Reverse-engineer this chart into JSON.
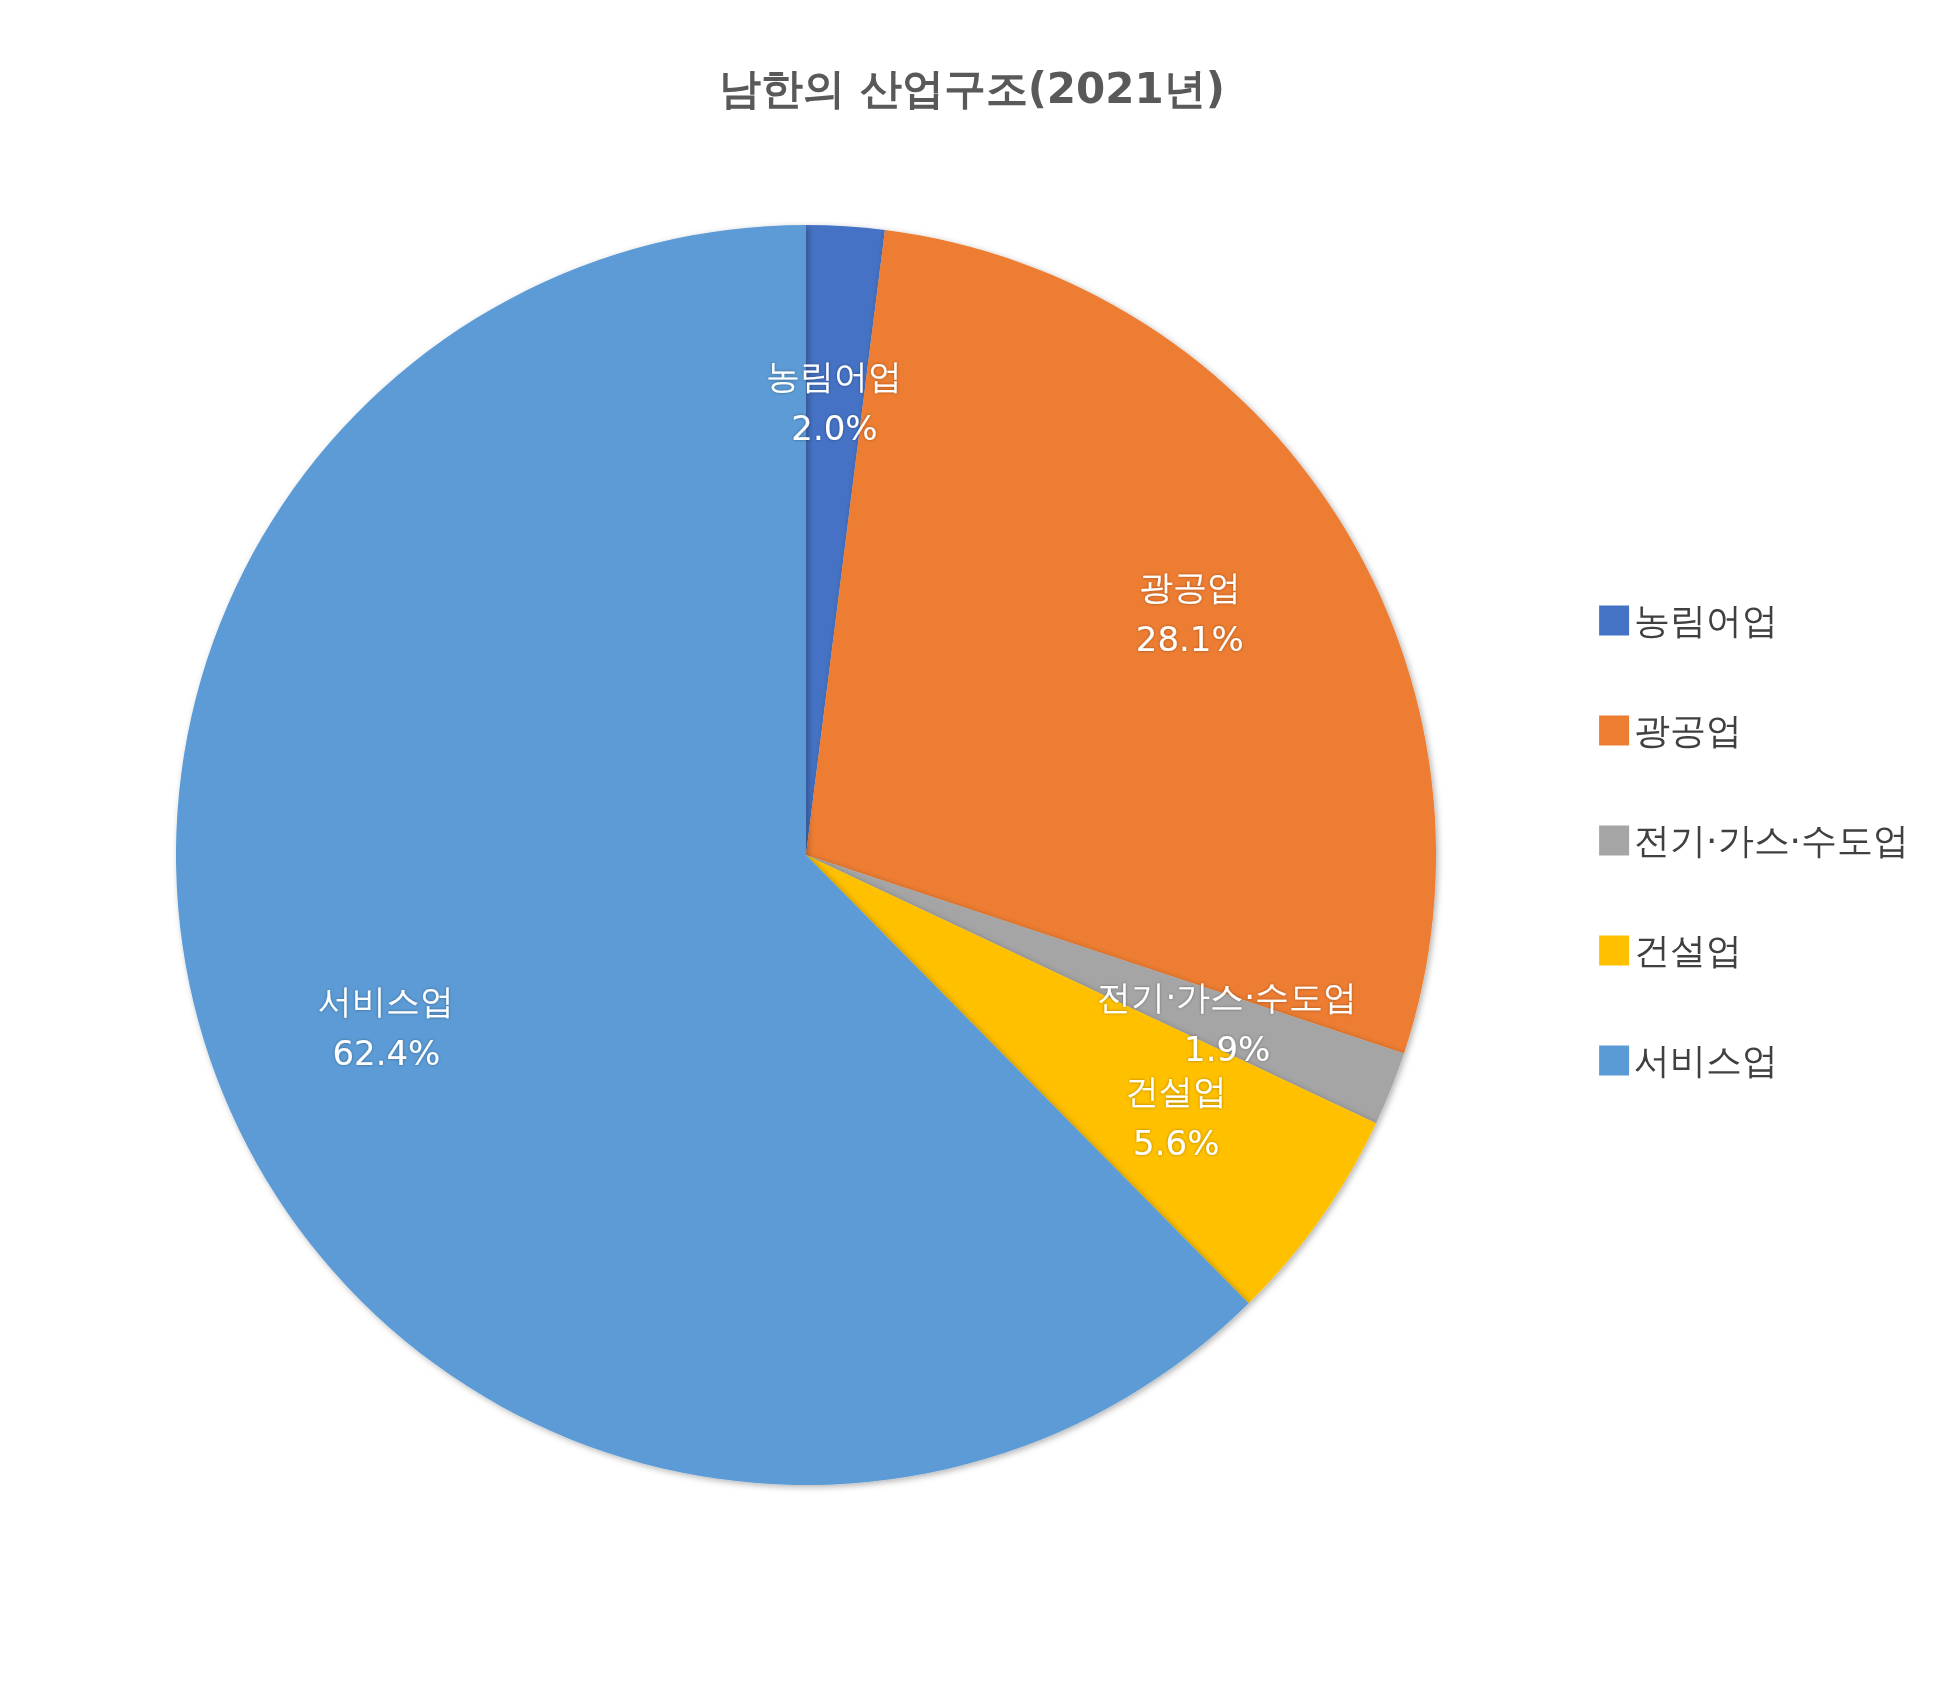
{
  "chart_data": {
    "type": "pie",
    "title": "남한의 산업구조(2021년)",
    "categories": [
      "농림어업",
      "광공업",
      "전기·가스·수도업",
      "건설업",
      "서비스업"
    ],
    "values": [
      2.0,
      28.1,
      1.9,
      5.6,
      62.4
    ],
    "value_labels": [
      "2.0%",
      "28.1%",
      "1.9%",
      "5.6%",
      "62.4%"
    ],
    "colors": [
      "#4472c4",
      "#ed7d31",
      "#a5a5a5",
      "#ffc000",
      "#5b9bd5"
    ],
    "legend": "right"
  }
}
